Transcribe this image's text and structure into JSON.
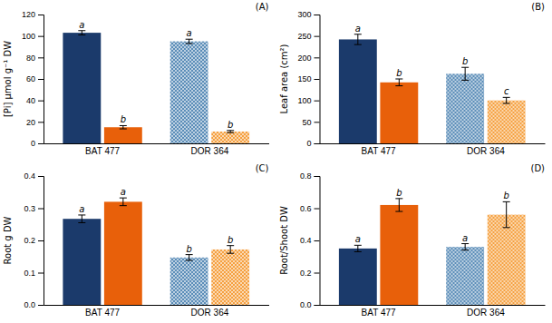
{
  "chart_data": [
    {
      "type": "bar",
      "title": "(A)",
      "ylabel": "[Pi] μmol g⁻¹ DW",
      "categories": [
        "BAT 477",
        "DOR 364"
      ],
      "series": [
        {
          "colors": [
            "#1B3A6B",
            "#5B8DB8"
          ],
          "values": [
            103,
            95
          ],
          "errors": [
            2,
            2
          ],
          "annotations": [
            "a",
            "a"
          ]
        },
        {
          "colors": [
            "#E8600A",
            "#F5A040"
          ],
          "values": [
            15,
            11
          ],
          "errors": [
            1.5,
            1
          ],
          "annotations": [
            "b",
            "b"
          ]
        }
      ],
      "ylim": [
        0,
        120
      ],
      "yticks": [
        0,
        20,
        40,
        60,
        80,
        100,
        120
      ],
      "grid": false
    },
    {
      "type": "bar",
      "title": "(B)",
      "ylabel": "Leaf area (cm²)",
      "categories": [
        "BAT 477",
        "DOR 364"
      ],
      "series": [
        {
          "colors": [
            "#1B3A6B",
            "#5B8DB8"
          ],
          "values": [
            242,
            162
          ],
          "errors": [
            12,
            15
          ],
          "annotations": [
            "a",
            "b"
          ]
        },
        {
          "colors": [
            "#E8600A",
            "#F5A040"
          ],
          "values": [
            142,
            100
          ],
          "errors": [
            8,
            7
          ],
          "annotations": [
            "b",
            "c"
          ]
        }
      ],
      "ylim": [
        0,
        300
      ],
      "yticks": [
        0,
        50,
        100,
        150,
        200,
        250,
        300
      ],
      "grid": false
    },
    {
      "type": "bar",
      "title": "(C)",
      "ylabel": "Root g DW",
      "categories": [
        "BAT 477",
        "DOR 364"
      ],
      "series": [
        {
          "colors": [
            "#1B3A6B",
            "#5B8DB8"
          ],
          "values": [
            0.267,
            0.147
          ],
          "errors": [
            0.012,
            0.009
          ],
          "annotations": [
            "a",
            "b"
          ]
        },
        {
          "colors": [
            "#E8600A",
            "#F5A040"
          ],
          "values": [
            0.32,
            0.172
          ],
          "errors": [
            0.012,
            0.012
          ],
          "annotations": [
            "a",
            "b"
          ]
        }
      ],
      "ylim": [
        0,
        0.4
      ],
      "yticks": [
        {
          "value": 0,
          "label": "0.0"
        },
        0.1,
        0.2,
        0.3,
        0.4
      ],
      "grid": false
    },
    {
      "type": "bar",
      "title": "(D)",
      "ylabel": "Root/Shoot DW",
      "categories": [
        "BAT 477",
        "DOR 364"
      ],
      "series": [
        {
          "colors": [
            "#1B3A6B",
            "#5B8DB8"
          ],
          "values": [
            0.35,
            0.36
          ],
          "errors": [
            0.02,
            0.02
          ],
          "annotations": [
            "a",
            "a"
          ]
        },
        {
          "colors": [
            "#E8600A",
            "#F5A040"
          ],
          "values": [
            0.62,
            0.56
          ],
          "errors": [
            0.04,
            0.08
          ],
          "annotations": [
            "b",
            "b"
          ]
        }
      ],
      "ylim": [
        0,
        0.8
      ],
      "yticks": [
        {
          "value": 0,
          "label": "0.0"
        },
        0.2,
        0.4,
        0.6,
        0.8
      ],
      "grid": false
    }
  ]
}
